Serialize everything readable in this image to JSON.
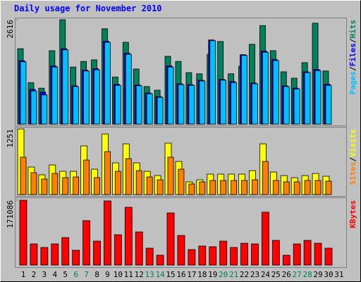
{
  "chart_data": [
    {
      "type": "bar",
      "title": "Daily usage for November 2010",
      "categories": [
        "1",
        "2",
        "3",
        "4",
        "5",
        "6",
        "7",
        "8",
        "9",
        "10",
        "11",
        "12",
        "13",
        "14",
        "15",
        "16",
        "17",
        "18",
        "19",
        "20",
        "21",
        "22",
        "23",
        "24",
        "25",
        "26",
        "27",
        "28",
        "29",
        "30",
        "31"
      ],
      "tick_label_colors": [
        "#000000",
        "#000000",
        "#000000",
        "#000000",
        "#000000",
        "#00805c",
        "#00805c",
        "#000000",
        "#000000",
        "#000000",
        "#000000",
        "#000000",
        "#00805c",
        "#00805c",
        "#000000",
        "#000000",
        "#000000",
        "#000000",
        "#000000",
        "#00805c",
        "#00805c",
        "#000000",
        "#000000",
        "#000000",
        "#000000",
        "#000000",
        "#00805c",
        "#00805c",
        "#000000",
        "#000000",
        "#000000"
      ],
      "legend_separator": "/",
      "ylim": [
        0,
        2616
      ],
      "yticks": [
        2616
      ],
      "series": [
        {
          "name": "Hits",
          "color": "#00805c",
          "values": [
            1890,
            1040,
            900,
            1840,
            2616,
            1430,
            1570,
            1610,
            2390,
            1180,
            2050,
            1380,
            940,
            850,
            1700,
            1570,
            1290,
            1260,
            1750,
            2070,
            1260,
            1450,
            2000,
            2470,
            1840,
            1310,
            1150,
            1540,
            2530,
            1330,
            null
          ]
        },
        {
          "name": "Files",
          "color": "#0000ff",
          "values": [
            1590,
            870,
            800,
            1460,
            1890,
            960,
            1350,
            1390,
            2080,
            1000,
            1780,
            980,
            780,
            690,
            1460,
            1010,
            990,
            1100,
            2110,
            1120,
            1070,
            1740,
            1030,
            1830,
            1620,
            960,
            900,
            1310,
            1370,
            1000,
            null
          ]
        },
        {
          "name": "Pages",
          "color": "#00c0ff",
          "values": [
            1560,
            830,
            730,
            1430,
            1860,
            940,
            1330,
            1360,
            2050,
            970,
            1750,
            960,
            760,
            670,
            1430,
            990,
            970,
            1080,
            2090,
            1100,
            1040,
            1720,
            1010,
            1800,
            1590,
            940,
            880,
            1290,
            1340,
            970,
            null
          ]
        }
      ]
    },
    {
      "type": "bar",
      "ylim": [
        0,
        1251
      ],
      "yticks": [
        1251
      ],
      "series": [
        {
          "name": "Visits",
          "color": "#ffff00",
          "values": [
            1251,
            525,
            377,
            565,
            444,
            444,
            928,
            484,
            1157,
            605,
            968,
            605,
            444,
            363,
            982,
            632,
            242,
            282,
            390,
            390,
            390,
            390,
            457,
            968,
            430,
            363,
            323,
            363,
            404,
            350,
            null
          ]
        },
        {
          "name": "Sites",
          "color": "#ff8000",
          "values": [
            713,
            417,
            296,
            404,
            323,
            336,
            659,
            323,
            820,
            444,
            686,
            457,
            336,
            282,
            713,
            484,
            202,
            242,
            269,
            269,
            269,
            269,
            282,
            632,
            269,
            242,
            242,
            269,
            269,
            256,
            null
          ]
        }
      ]
    },
    {
      "type": "bar",
      "ylim": [
        0,
        171086
      ],
      "yticks": [
        171086
      ],
      "series": [
        {
          "name": "KBytes",
          "color": "#ff0000",
          "values": [
            171086,
            55800,
            46500,
            55800,
            72500,
            39100,
            117200,
            63200,
            169200,
            80000,
            152500,
            87400,
            44600,
            26000,
            137600,
            78100,
            40900,
            50200,
            48400,
            63200,
            46500,
            57600,
            55800,
            139500,
            65100,
            26000,
            55800,
            65100,
            57600,
            44600,
            null
          ]
        }
      ]
    }
  ]
}
